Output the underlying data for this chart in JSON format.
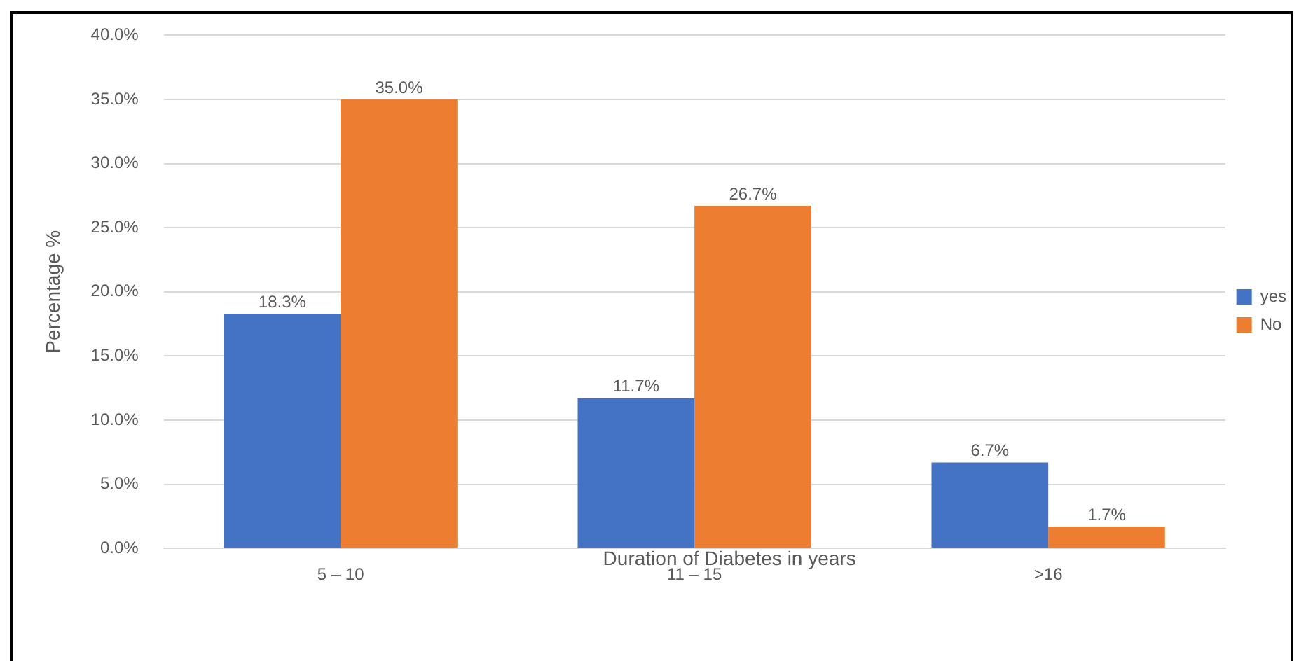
{
  "chart_data": {
    "type": "bar",
    "xlabel": "Duration of Diabetes in years",
    "ylabel": "Percentage %",
    "categories": [
      "5 – 10",
      "11 – 15",
      ">16"
    ],
    "series": [
      {
        "name": "yes",
        "color": "#4472c4",
        "values": [
          18.3,
          11.7,
          6.7
        ],
        "value_labels": [
          "18.3%",
          "11.7%",
          "6.7%"
        ]
      },
      {
        "name": "No",
        "color": "#ed7d31",
        "values": [
          35.0,
          26.7,
          1.7
        ],
        "value_labels": [
          "35.0%",
          "26.7%",
          "1.7%"
        ]
      }
    ],
    "ylim": [
      0,
      40
    ],
    "yticks": [
      {
        "value": 0,
        "label": "0.0%"
      },
      {
        "value": 5,
        "label": "5.0%"
      },
      {
        "value": 10,
        "label": "10.0%"
      },
      {
        "value": 15,
        "label": "15.0%"
      },
      {
        "value": 20,
        "label": "20.0%"
      },
      {
        "value": 25,
        "label": "25.0%"
      },
      {
        "value": 30,
        "label": "30.0%"
      },
      {
        "value": 35,
        "label": "35.0%"
      },
      {
        "value": 40,
        "label": "40.0%"
      }
    ],
    "grid": "y",
    "legend": "right"
  }
}
